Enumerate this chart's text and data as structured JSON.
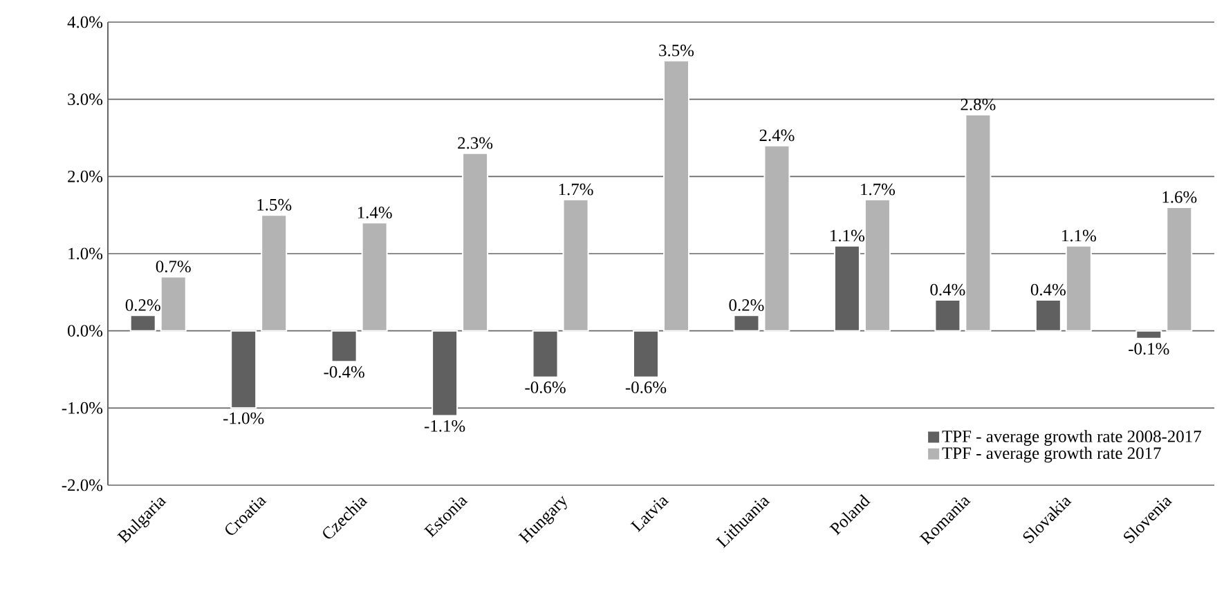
{
  "chart_data": {
    "type": "bar",
    "categories": [
      "Bulgaria",
      "Croatia",
      "Czechia",
      "Estonia",
      "Hungary",
      "Latvia",
      "Lithuania",
      "Poland",
      "Romania",
      "Slovakia",
      "Slovenia"
    ],
    "series": [
      {
        "name": "TPF - average growth rate  2008-2017",
        "color": "#606060",
        "values": [
          0.2,
          -1.0,
          -0.4,
          -1.1,
          -0.6,
          -0.6,
          0.2,
          1.1,
          0.4,
          0.4,
          -0.1
        ],
        "value_labels": [
          "0.2%",
          "-1.0%",
          "-0.4%",
          "-1.1%",
          "-0.6%",
          "-0.6%",
          "0.2%",
          "1.1%",
          "0.4%",
          "0.4%",
          "-0.1%"
        ]
      },
      {
        "name": "TPF - average growth rate  2017",
        "color": "#b3b3b3",
        "values": [
          0.7,
          1.5,
          1.4,
          2.3,
          1.7,
          3.5,
          2.4,
          1.7,
          2.8,
          1.1,
          1.6
        ],
        "value_labels": [
          "0.7%",
          "1.5%",
          "1.4%",
          "2.3%",
          "1.7%",
          "3.5%",
          "2.4%",
          "1.7%",
          "2.8%",
          "1.1%",
          "1.6%"
        ]
      }
    ],
    "ylim": [
      -2,
      4
    ],
    "yticks": [
      {
        "value": -2,
        "label": "-2.0%"
      },
      {
        "value": -1,
        "label": "-1.0%"
      },
      {
        "value": 0,
        "label": "0.0%"
      },
      {
        "value": 1,
        "label": "1.0%"
      },
      {
        "value": 2,
        "label": "2.0%"
      },
      {
        "value": 3,
        "label": "3.0%"
      },
      {
        "value": 4,
        "label": "4.0%"
      }
    ],
    "grid": "y",
    "legend": "bottom right"
  }
}
